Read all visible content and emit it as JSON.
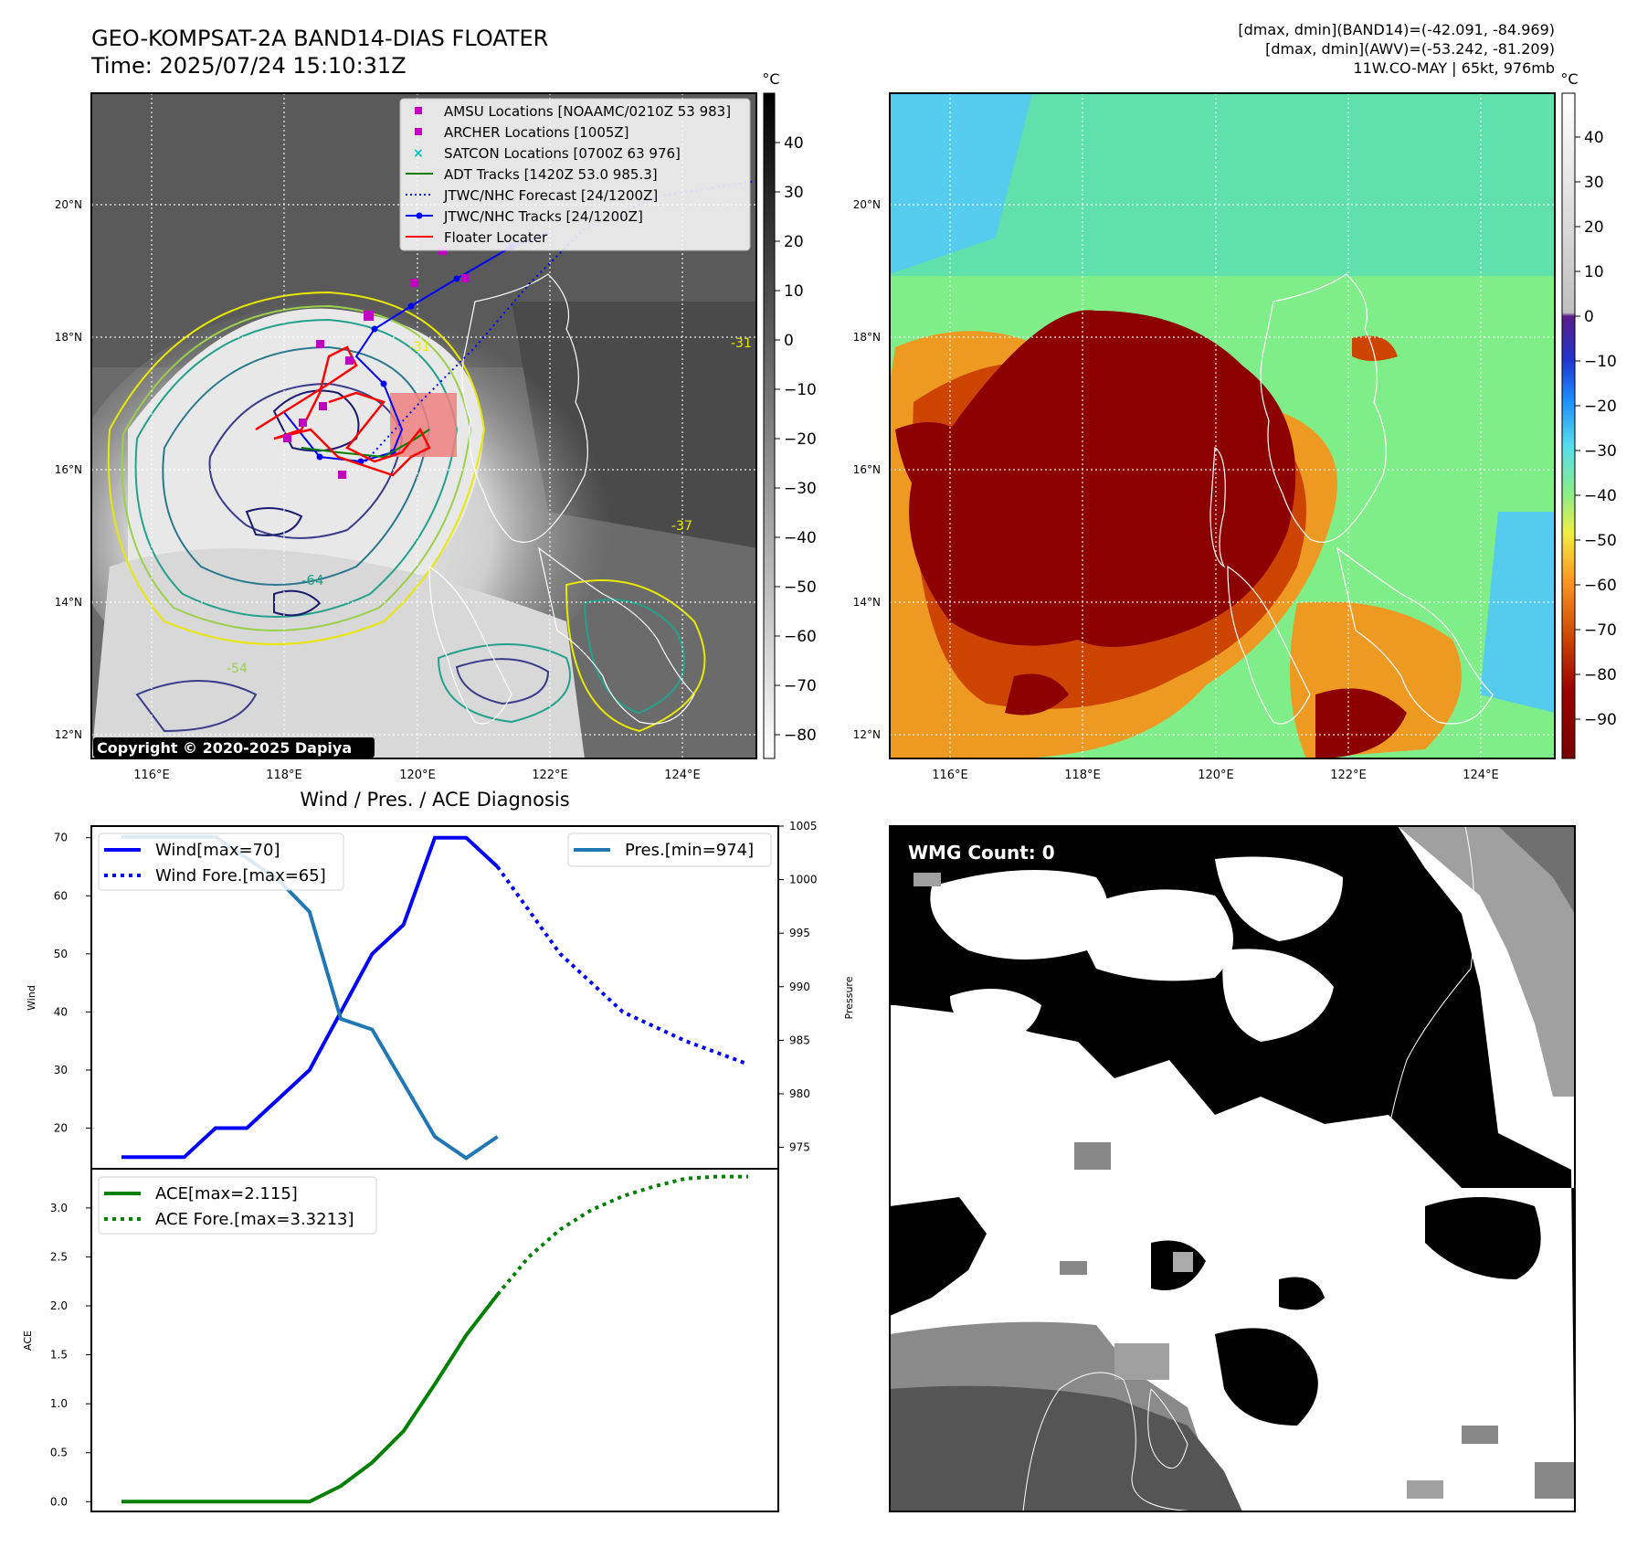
{
  "header": {
    "title": "GEO-KOMPSAT-2A BAND14-DIAS FLOATER",
    "time": "Time: 2025/07/24 15:10:31Z",
    "stats_band14": "[dmax, dmin](BAND14)=(-42.091, -84.969)",
    "stats_awv": "[dmax, dmin](AWV)=(-53.242, -81.209)",
    "storm": "11W.CO-MAY | 65kt, 976mb"
  },
  "colors": {
    "wind": "#0000ff",
    "pressure": "#1f77b4",
    "ace": "#008000",
    "amsu": "#c000c0",
    "satcon": "#00c0c0",
    "floater": "#ff0000"
  },
  "map": {
    "unit": "°C",
    "lat_labels": [
      "20°N",
      "18°N",
      "16°N",
      "14°N",
      "12°N"
    ],
    "lon_labels": [
      "116°E",
      "118°E",
      "120°E",
      "122°E",
      "124°E"
    ],
    "copyright": "Copyright © 2020-2025 Dapiya",
    "contour_labels": [
      "-64",
      "-54",
      "-31",
      "-31",
      "-37"
    ],
    "legend": [
      {
        "label": "AMSU Locations [NOAAMC/0210Z 53 983]",
        "icon": "magenta-square"
      },
      {
        "label": "ARCHER Locations [1005Z]",
        "icon": "magenta-square"
      },
      {
        "label": "SATCON Locations [0700Z 63 976]",
        "icon": "cyan-x"
      },
      {
        "label": "ADT Tracks [1420Z 53.0 985.3]",
        "icon": "green-line"
      },
      {
        "label": "JTWC/NHC Forecast [24/1200Z]",
        "icon": "blue-dotted-line"
      },
      {
        "label": "JTWC/NHC Tracks [24/1200Z]",
        "icon": "blue-line-dot"
      },
      {
        "label": "Floater Locater",
        "icon": "red-line"
      }
    ],
    "gray_ticks": [
      "40",
      "30",
      "20",
      "10",
      "0",
      "−10",
      "−20",
      "−30",
      "−40",
      "−50",
      "−60",
      "−70",
      "−80"
    ],
    "color_ticks": [
      "40",
      "30",
      "20",
      "10",
      "0",
      "−10",
      "−20",
      "−30",
      "−40",
      "−50",
      "−60",
      "−70",
      "−80",
      "−90"
    ]
  },
  "diag": {
    "title": "Wind / Pres. / ACE Diagnosis",
    "wind_ylabel": "Wind",
    "pres_ylabel": "Pressure",
    "ace_ylabel": "ACE",
    "wind_ticks": [
      "70",
      "60",
      "50",
      "40",
      "30",
      "20"
    ],
    "pres_ticks": [
      "1005",
      "1000",
      "995",
      "990",
      "985",
      "980",
      "975"
    ],
    "ace_ticks": [
      "3.0",
      "2.5",
      "2.0",
      "1.5",
      "1.0",
      "0.5",
      "0.0"
    ],
    "legend_wind": "Wind[max=70]",
    "legend_wind_fore": "Wind Fore.[max=65]",
    "legend_pres": "Pres.[min=974]",
    "legend_ace": "ACE[max=2.115]",
    "legend_ace_fore": "ACE Fore.[max=3.3213]"
  },
  "wmg": {
    "label": "WMG Count: 0"
  },
  "chart_data": [
    {
      "type": "line",
      "title": "Wind / Pres. / ACE Diagnosis",
      "ylabel": "Wind",
      "ylim": [
        13,
        72
      ],
      "series": [
        {
          "name": "Wind[max=70]",
          "x": [
            0,
            1,
            2,
            3,
            4,
            5,
            6,
            7,
            8,
            9,
            10,
            11,
            12
          ],
          "values": [
            15,
            15,
            15,
            20,
            20,
            25,
            30,
            40,
            50,
            55,
            70,
            70,
            65
          ]
        },
        {
          "name": "Wind Fore.[max=65]",
          "x": [
            12,
            14,
            16,
            18,
            20
          ],
          "values": [
            65,
            50,
            40,
            35,
            31
          ]
        }
      ]
    },
    {
      "type": "line",
      "ylabel": "Pressure",
      "ylim": [
        973,
        1005
      ],
      "series": [
        {
          "name": "Pres.[min=974]",
          "x": [
            0,
            1,
            2,
            3,
            4,
            5,
            6,
            7,
            8,
            9,
            10,
            11,
            12
          ],
          "values": [
            1004,
            1004,
            1004,
            1004,
            1002,
            1000,
            997,
            987,
            986,
            981,
            976,
            974,
            976
          ]
        }
      ]
    },
    {
      "type": "line",
      "ylabel": "ACE",
      "ylim": [
        -0.1,
        3.4
      ],
      "series": [
        {
          "name": "ACE[max=2.115]",
          "x": [
            0,
            1,
            2,
            3,
            4,
            5,
            6,
            7,
            8,
            9,
            10,
            11,
            12
          ],
          "values": [
            0,
            0,
            0,
            0,
            0,
            0,
            0,
            0.16,
            0.4,
            0.72,
            1.2,
            1.7,
            2.115
          ]
        },
        {
          "name": "ACE Fore.[max=3.3213]",
          "x": [
            12,
            13,
            14,
            15,
            16,
            17,
            18,
            19,
            20
          ],
          "values": [
            2.115,
            2.5,
            2.78,
            2.98,
            3.12,
            3.22,
            3.3,
            3.32,
            3.32
          ]
        }
      ]
    }
  ]
}
